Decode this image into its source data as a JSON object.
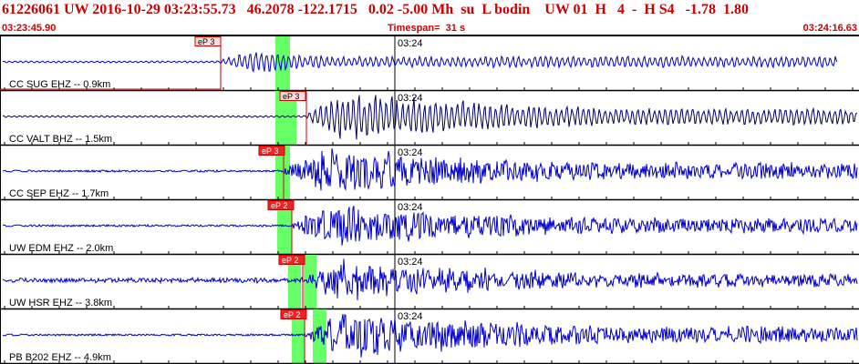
{
  "header": {
    "title": "61226061 UW 2016-10-29 03:23:55.73   46.2078 -122.1715   0.02 -5.00 Mh  su  L bodin    UW 01  H   4  -  H S4   -1.78  1.80",
    "start_time": "03:23:45.90",
    "timespan": "Timespan=  31 s",
    "end_time": "03:24:16.63"
  },
  "colors": {
    "header_text": "#cc0000",
    "trace": "#0000cc",
    "trace_alt": "#000066",
    "pick_line": "#cc0000",
    "pick_box": "#ee2222",
    "highlight": "#66ff66"
  },
  "minute_label": "03:24",
  "traces": [
    {
      "label": "CC SUG EHZ --  0.9km",
      "pick": "eP 3",
      "pick_filled": false,
      "amp": 0.55,
      "onset": 0.34,
      "dark": false
    },
    {
      "label": "CC VALT BHZ -- 1.5km",
      "pick": "eP 3",
      "pick_filled": false,
      "amp": 0.95,
      "onset": 0.36,
      "dark": true
    },
    {
      "label": "CC SEP EHZ -- 1.7km",
      "pick": "eP 3",
      "pick_filled": true,
      "amp": 0.9,
      "onset": 0.33,
      "dark": false
    },
    {
      "label": "UW EDM EHZ -- 2.0km",
      "pick": "eP 2",
      "pick_filled": true,
      "amp": 0.8,
      "onset": 0.34,
      "dark": false
    },
    {
      "label": "UW HSR EHZ -- 3.8km",
      "pick": "eP 2",
      "pick_filled": true,
      "amp": 0.75,
      "onset": 0.36,
      "dark": false
    },
    {
      "label": "PB B202 EHZ -- 4.9km",
      "pick": "eP 2",
      "pick_filled": true,
      "amp": 0.9,
      "onset": 0.37,
      "dark": false
    }
  ]
}
